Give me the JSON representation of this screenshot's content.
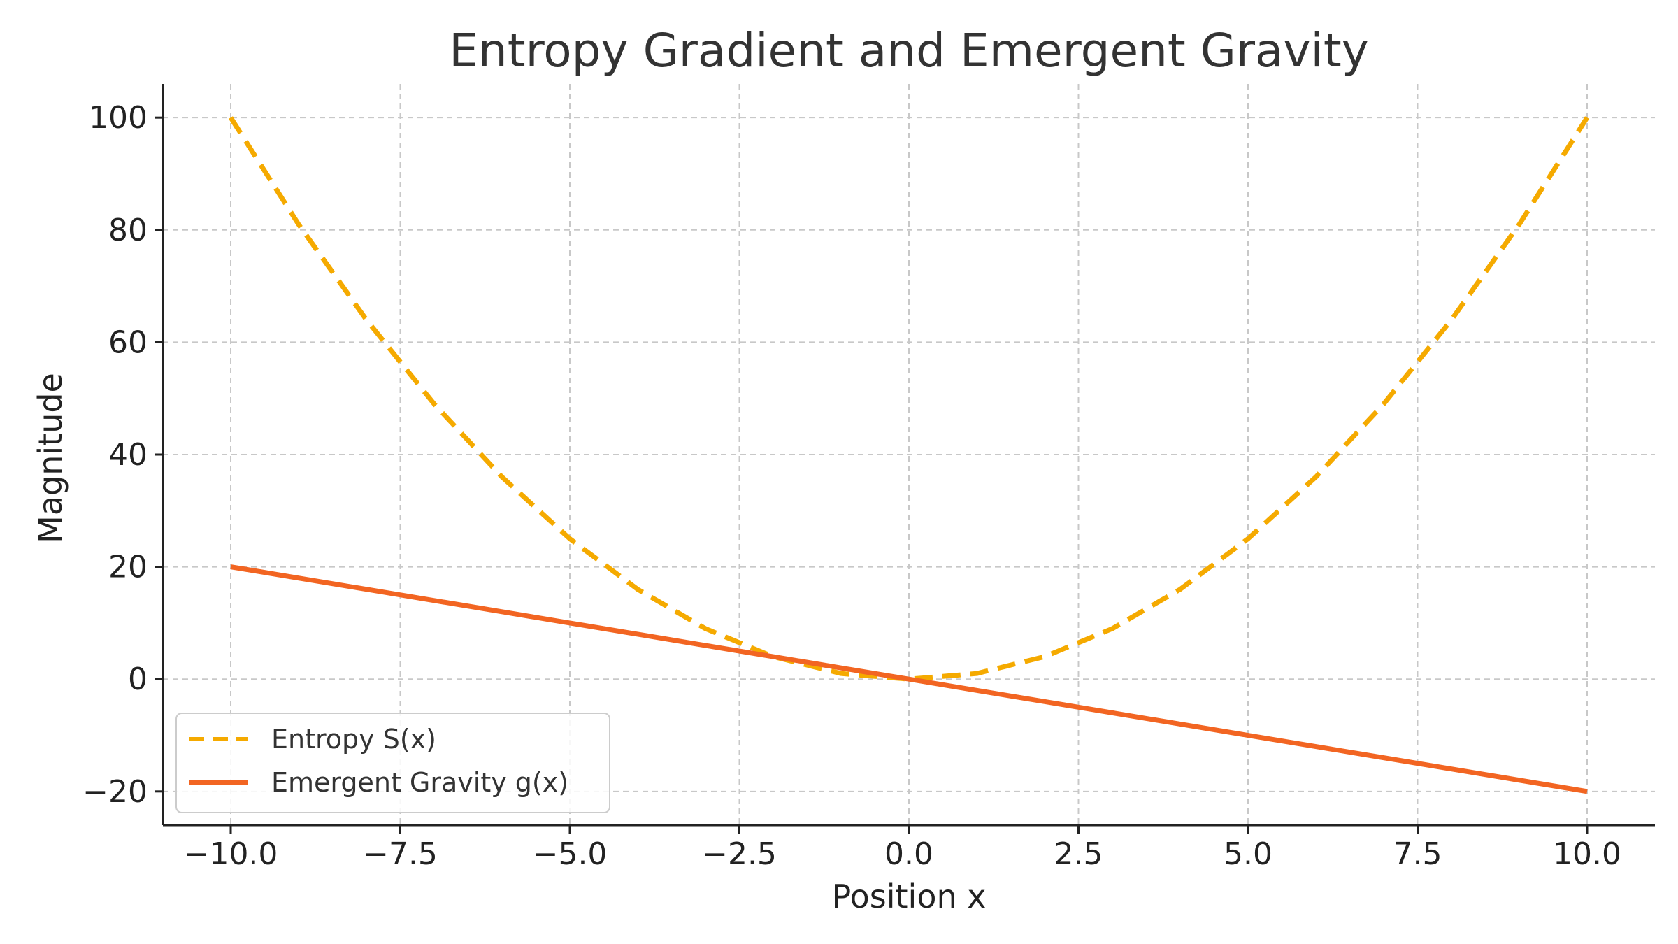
{
  "chart_data": {
    "type": "line",
    "title": "Entropy Gradient and Emergent Gravity",
    "xlabel": "Position x",
    "ylabel": "Magnitude",
    "xlim": [
      -11,
      11
    ],
    "ylim": [
      -26,
      106
    ],
    "x_ticks": [
      -10.0,
      -7.5,
      -5.0,
      -2.5,
      0.0,
      2.5,
      5.0,
      7.5,
      10.0
    ],
    "x_tick_labels": [
      "−10.0",
      "−7.5",
      "−5.0",
      "−2.5",
      "0.0",
      "2.5",
      "5.0",
      "7.5",
      "10.0"
    ],
    "y_ticks": [
      -20,
      0,
      20,
      40,
      60,
      80,
      100
    ],
    "y_tick_labels": [
      "−20",
      "0",
      "20",
      "40",
      "60",
      "80",
      "100"
    ],
    "grid": true,
    "legend_position": "lower-left",
    "x": [
      -10,
      -9,
      -8,
      -7,
      -6,
      -5,
      -4,
      -3,
      -2,
      -1,
      0,
      1,
      2,
      3,
      4,
      5,
      6,
      7,
      8,
      9,
      10
    ],
    "series": [
      {
        "name": "Entropy S(x)",
        "style": "dashed",
        "color": "#F5AA00",
        "values": [
          100,
          81,
          64,
          49,
          36,
          25,
          16,
          9,
          4,
          1,
          0,
          1,
          4,
          9,
          16,
          25,
          36,
          49,
          64,
          81,
          100
        ]
      },
      {
        "name": "Emergent Gravity g(x)",
        "style": "solid",
        "color": "#F26522",
        "values": [
          20,
          18,
          16,
          14,
          12,
          10,
          8,
          6,
          4,
          2,
          0,
          -2,
          -4,
          -6,
          -8,
          -10,
          -12,
          -14,
          -16,
          -18,
          -20
        ]
      }
    ]
  }
}
